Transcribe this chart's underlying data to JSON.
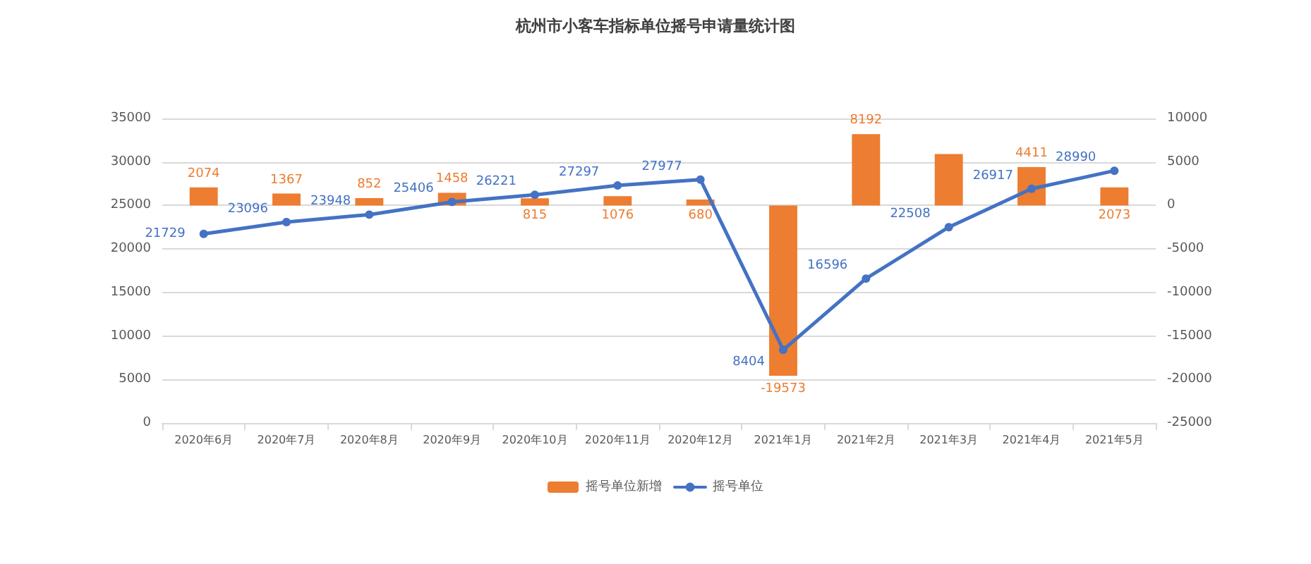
{
  "chart_data": {
    "type": "bar",
    "title": "杭州市小客车指标单位摇号申请量统计图",
    "categories": [
      "2020年6月",
      "2020年7月",
      "2020年8月",
      "2020年9月",
      "2020年10月",
      "2020年11月",
      "2020年12月",
      "2021年1月",
      "2021年2月",
      "2021年3月",
      "2021年4月",
      "2021年5月"
    ],
    "series": [
      {
        "name": "摇号单位新增",
        "axis": "y2",
        "color": "#ed7d31",
        "values": [
          2074,
          1367,
          852,
          1458,
          815,
          1076,
          680,
          -19573,
          8192,
          5900,
          4411,
          2073
        ],
        "value_labels": [
          "2074",
          "1367",
          "852",
          "1458",
          "815",
          "1076",
          "680",
          "-19573",
          "8192",
          null,
          "4411",
          "2073"
        ]
      },
      {
        "name": "摇号单位",
        "type": "line",
        "color": "#4472c4",
        "marker": "circle",
        "values": [
          21729,
          23096,
          23948,
          25406,
          26221,
          27297,
          27977,
          8404,
          16596,
          22508,
          26917,
          28990
        ],
        "value_labels": [
          "21729",
          "23096",
          "23948",
          "25406",
          "26221",
          "27297",
          "27977",
          "8404",
          "16596",
          "22508",
          "26917",
          "28990"
        ]
      }
    ],
    "ylim": [
      0,
      35000
    ],
    "yticks": [
      0,
      5000,
      10000,
      15000,
      20000,
      25000,
      30000,
      35000
    ],
    "y2lim": [
      -25000,
      10000
    ],
    "y2ticks": [
      -25000,
      -20000,
      -15000,
      -10000,
      -5000,
      0,
      5000,
      10000
    ],
    "grid": "y",
    "legend": "bottom"
  }
}
